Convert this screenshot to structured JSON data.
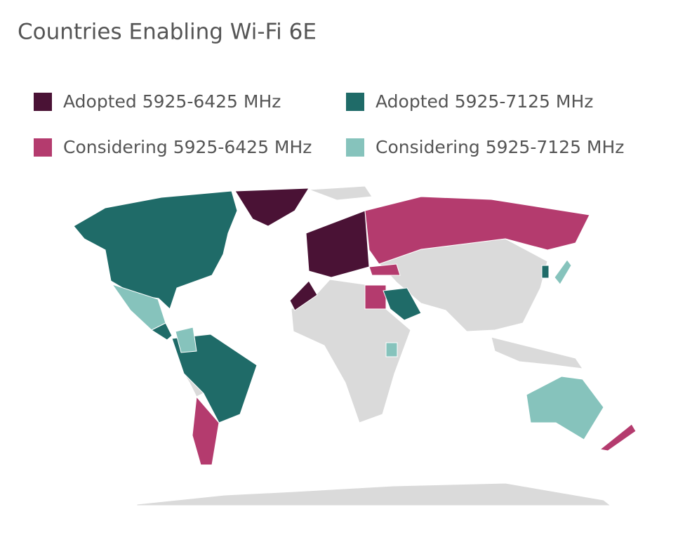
{
  "title": "Countries Enabling Wi-Fi 6E",
  "legend": [
    {
      "label": "Adopted 5925-6425 MHz",
      "color": "#4a1235"
    },
    {
      "label": "Adopted 5925-7125 MHz",
      "color": "#1f6b68"
    },
    {
      "label": "Considering 5925-6425 MHz",
      "color": "#b43b6e"
    },
    {
      "label": "Considering 5925-7125 MHz",
      "color": "#86c3bc"
    }
  ]
}
